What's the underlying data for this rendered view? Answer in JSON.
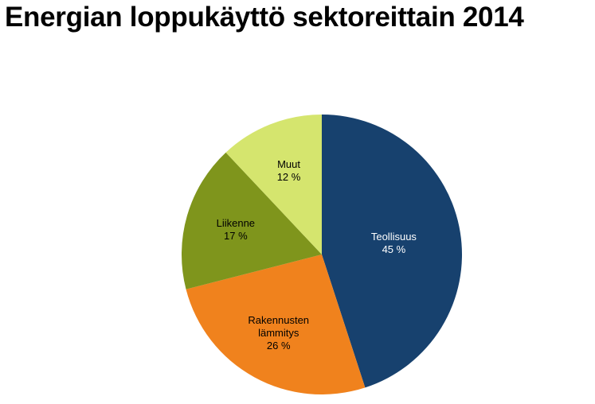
{
  "chart_data": {
    "type": "pie",
    "title": "Energian loppukäyttö sektoreittain 2014",
    "categories": [
      "Teollisuus",
      "Rakennusten lämmitys",
      "Liikenne",
      "Muut"
    ],
    "values": [
      45,
      26,
      17,
      12
    ],
    "value_labels": [
      "45 %",
      "26 %",
      "17 %",
      "12 %"
    ],
    "colors": [
      "#17416e",
      "#f0821d",
      "#7f951c",
      "#d5e56e"
    ]
  }
}
